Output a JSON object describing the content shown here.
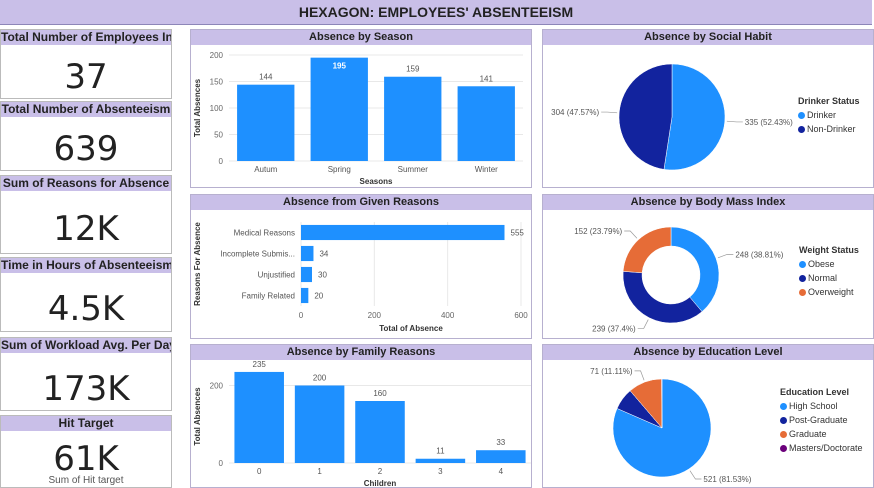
{
  "title": "HEXAGON: EMPLOYEES' ABSENTEEISM",
  "kpis": [
    {
      "label": "Total Number of Employees Info",
      "value": "37"
    },
    {
      "label": "Total Number of Absenteeism",
      "value": "639"
    },
    {
      "label": "Sum of Reasons for Absence",
      "value": "12K"
    },
    {
      "label": "Time in Hours of Absenteeism",
      "value": "4.5K"
    },
    {
      "label": "Sum of Workload Avg. Per Day",
      "value": "173K"
    },
    {
      "label": "Hit Target",
      "value": "61K",
      "sub": "Sum of Hit target"
    }
  ],
  "colors": {
    "primary": "#1e90ff",
    "dark": "#12239e",
    "orange": "#e66c37",
    "purple": "#6b007b",
    "header": "#c9bfe8"
  },
  "chart_data": [
    {
      "type": "bar",
      "title": "Absence by Season",
      "categories": [
        "Autum",
        "Spring",
        "Summer",
        "Winter"
      ],
      "values": [
        144,
        195,
        159,
        141
      ],
      "labels": [
        "144",
        "195",
        "159",
        "141"
      ],
      "xlabel": "Seasons",
      "ylabel": "Total Absences",
      "ylim": [
        0,
        200
      ],
      "yticks": [
        "0",
        "50",
        "100",
        "150",
        "200"
      ]
    },
    {
      "type": "bar",
      "title": "Absence from Given Reasons",
      "orientation": "horizontal",
      "categories": [
        "Medical Reasons",
        "Incomplete Submis...",
        "Unjustified",
        "Family Related"
      ],
      "values": [
        555,
        34,
        30,
        20
      ],
      "labels": [
        "555",
        "34",
        "30",
        "20"
      ],
      "xlabel": "Total of Absence",
      "ylabel": "Reasons For Absence",
      "xlim": [
        0,
        600
      ],
      "xticks": [
        "0",
        "200",
        "400",
        "600"
      ]
    },
    {
      "type": "bar",
      "title": "Absence by Family Reasons",
      "categories": [
        "0",
        "1",
        "2",
        "3",
        "4"
      ],
      "values": [
        235,
        200,
        160,
        11,
        33
      ],
      "labels": [
        "235",
        "200",
        "160",
        "11",
        "33"
      ],
      "xlabel": "Children",
      "ylabel": "Total Absences",
      "ylim": [
        0,
        240
      ],
      "yticks": [
        "0",
        "200"
      ]
    },
    {
      "type": "pie",
      "title": "Absence by Social Habit",
      "legend_title": "Drinker Status",
      "series": [
        {
          "name": "Drinker",
          "value": 335,
          "label": "335 (52.43%)",
          "color": "#1e90ff"
        },
        {
          "name": "Non-Drinker",
          "value": 304,
          "label": "304 (47.57%)",
          "color": "#12239e"
        }
      ]
    },
    {
      "type": "pie",
      "donut": true,
      "title": "Absence by Body Mass Index",
      "legend_title": "Weight Status",
      "series": [
        {
          "name": "Obese",
          "value": 248,
          "label": "248 (38.81%)",
          "color": "#1e90ff"
        },
        {
          "name": "Normal",
          "value": 239,
          "label": "239 (37.4%)",
          "color": "#12239e"
        },
        {
          "name": "Overweight",
          "value": 152,
          "label": "152 (23.79%)",
          "color": "#e66c37"
        }
      ]
    },
    {
      "type": "pie",
      "title": "Absence by Education Level",
      "legend_title": "Education Level",
      "series": [
        {
          "name": "High School",
          "value": 521,
          "label": "521 (81.53%)",
          "color": "#1e90ff"
        },
        {
          "name": "Post-Graduate",
          "value": 46,
          "label": "",
          "color": "#12239e"
        },
        {
          "name": "Graduate",
          "value": 71,
          "label": "71 (11.11%)",
          "color": "#e66c37"
        },
        {
          "name": "Masters/Doctorate",
          "value": 1,
          "label": "",
          "color": "#6b007b"
        }
      ]
    }
  ]
}
